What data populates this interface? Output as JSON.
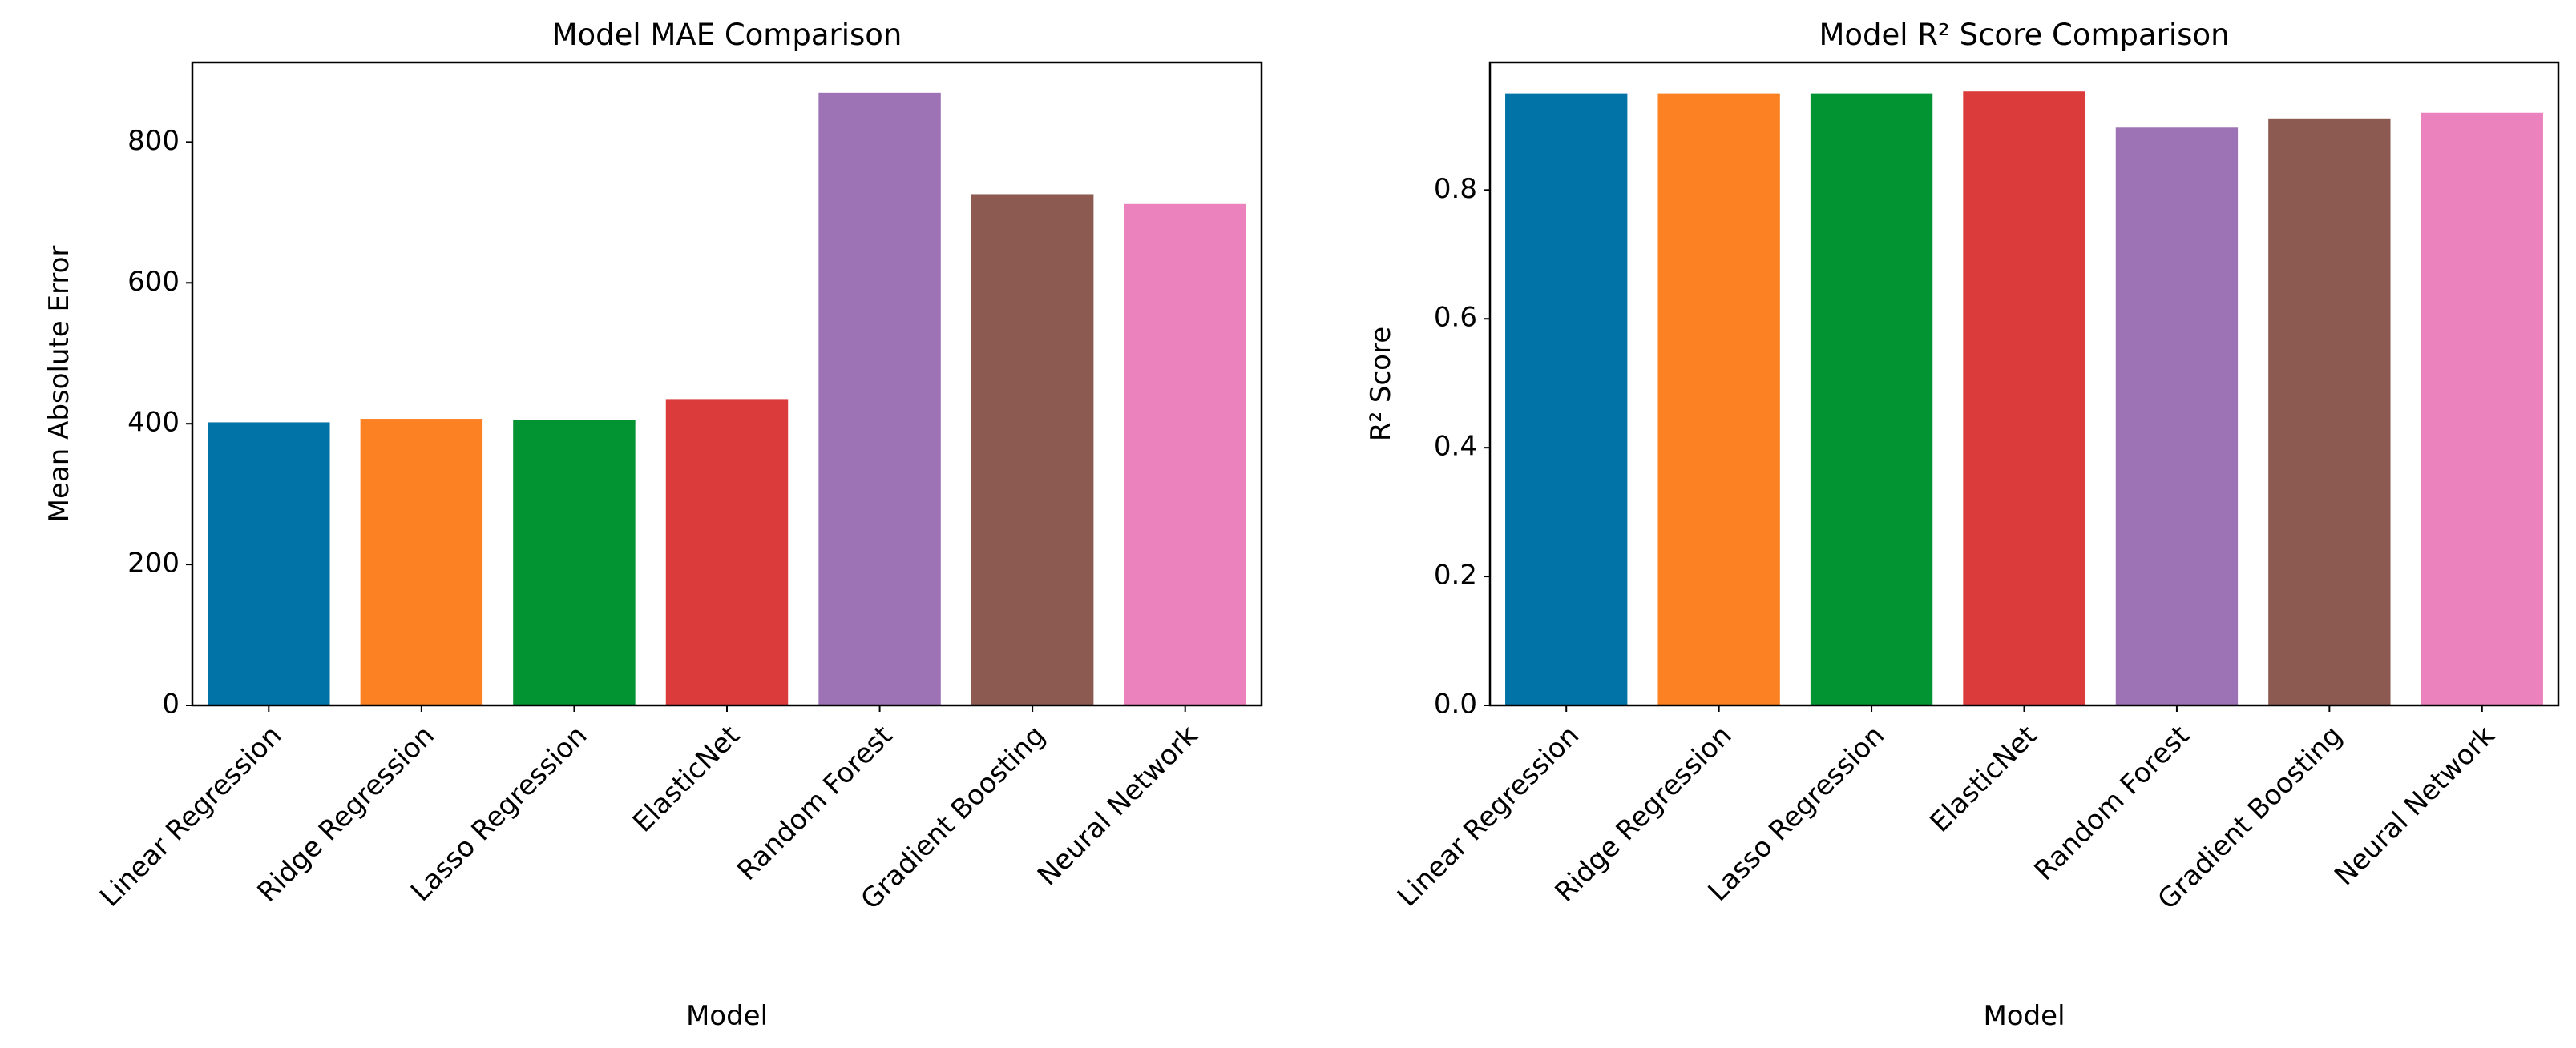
{
  "chart_data": [
    {
      "type": "bar",
      "title": "Model MAE Comparison",
      "xlabel": "Model",
      "ylabel": "Mean Absolute Error",
      "categories": [
        "Linear Regression",
        "Ridge Regression",
        "Lasso Regression",
        "ElasticNet",
        "Random Forest",
        "Gradient Boosting",
        "Neural Network"
      ],
      "values": [
        402,
        407,
        405,
        435,
        870,
        726,
        712
      ],
      "colors": [
        "#0173a6",
        "#fb8122",
        "#029433",
        "#db3b3b",
        "#9e73b5",
        "#8c5a50",
        "#ec82bd"
      ],
      "ylim": [
        0,
        913
      ],
      "yticks": [
        0,
        200,
        400,
        600,
        800
      ]
    },
    {
      "type": "bar",
      "title": "Model R² Score Comparison",
      "xlabel": "Model",
      "ylabel": "R² Score",
      "categories": [
        "Linear Regression",
        "Ridge Regression",
        "Lasso Regression",
        "ElasticNet",
        "Random Forest",
        "Gradient Boosting",
        "Neural Network"
      ],
      "values": [
        0.95,
        0.95,
        0.95,
        0.953,
        0.897,
        0.91,
        0.92
      ],
      "colors": [
        "#0173a6",
        "#fb8122",
        "#029433",
        "#db3b3b",
        "#9e73b5",
        "#8c5a50",
        "#ec82bd"
      ],
      "ylim": [
        0,
        0.998
      ],
      "yticks": [
        {
          "value": 0,
          "label": "0.0"
        },
        0.2,
        0.4,
        0.6,
        0.8
      ]
    }
  ]
}
